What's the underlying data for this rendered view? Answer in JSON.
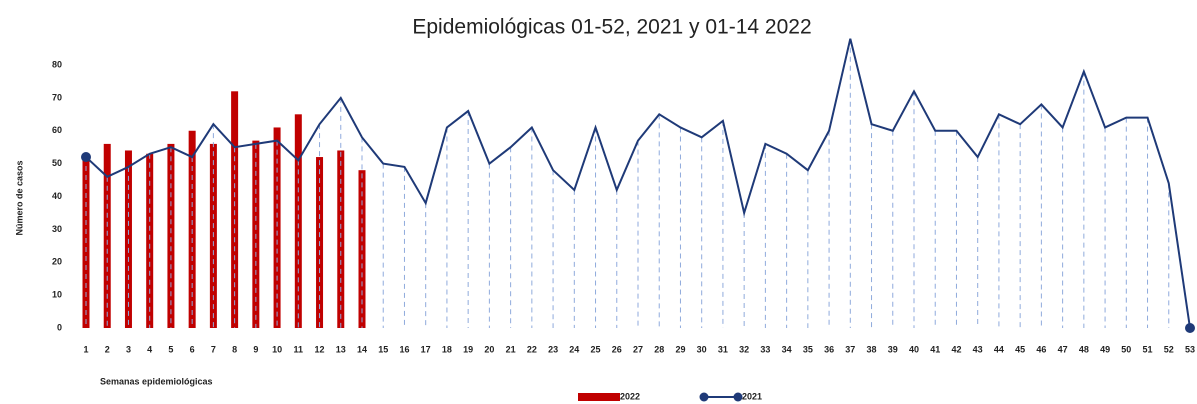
{
  "chart_data": {
    "type": "bar-line",
    "title": "Epidemiológicas 01-52, 2021 y 01-14 2022",
    "ylabel": "Número de casos",
    "xlabel": "Semanas epidemiológicas",
    "categories": [
      "1",
      "2",
      "3",
      "4",
      "5",
      "6",
      "7",
      "8",
      "9",
      "10",
      "11",
      "12",
      "13",
      "14",
      "15",
      "16",
      "17",
      "18",
      "19",
      "20",
      "21",
      "22",
      "23",
      "24",
      "25",
      "26",
      "27",
      "28",
      "29",
      "30",
      "31",
      "32",
      "33",
      "34",
      "35",
      "36",
      "37",
      "38",
      "39",
      "40",
      "41",
      "42",
      "43",
      "44",
      "45",
      "46",
      "47",
      "48",
      "49",
      "50",
      "51",
      "52",
      "53"
    ],
    "series": [
      {
        "name": "2022",
        "type": "bar",
        "color": "#c00000",
        "values": [
          52,
          56,
          54,
          53,
          56,
          60,
          56,
          72,
          57,
          61,
          65,
          52,
          54,
          48,
          null,
          null,
          null,
          null,
          null,
          null,
          null,
          null,
          null,
          null,
          null,
          null,
          null,
          null,
          null,
          null,
          null,
          null,
          null,
          null,
          null,
          null,
          null,
          null,
          null,
          null,
          null,
          null,
          null,
          null,
          null,
          null,
          null,
          null,
          null,
          null,
          null,
          null,
          null
        ]
      },
      {
        "name": "2021",
        "type": "line",
        "color": "#1f3a78",
        "values": [
          52,
          46,
          49,
          53,
          55,
          52,
          62,
          55,
          56,
          57,
          51,
          62,
          70,
          58,
          50,
          49,
          38,
          61,
          66,
          50,
          55,
          61,
          48,
          42,
          61,
          42,
          57,
          65,
          61,
          58,
          63,
          35,
          56,
          53,
          48,
          60,
          88,
          62,
          60,
          72,
          60,
          60,
          52,
          65,
          62,
          68,
          61,
          78,
          61,
          64,
          64,
          44,
          0
        ]
      }
    ],
    "ylim": [
      0,
      80
    ],
    "yticks": [
      0,
      10,
      20,
      30,
      40,
      50,
      60,
      70,
      80
    ],
    "drop_lines": true,
    "drop_line_color": "#8faadc",
    "legend": "bottom"
  }
}
